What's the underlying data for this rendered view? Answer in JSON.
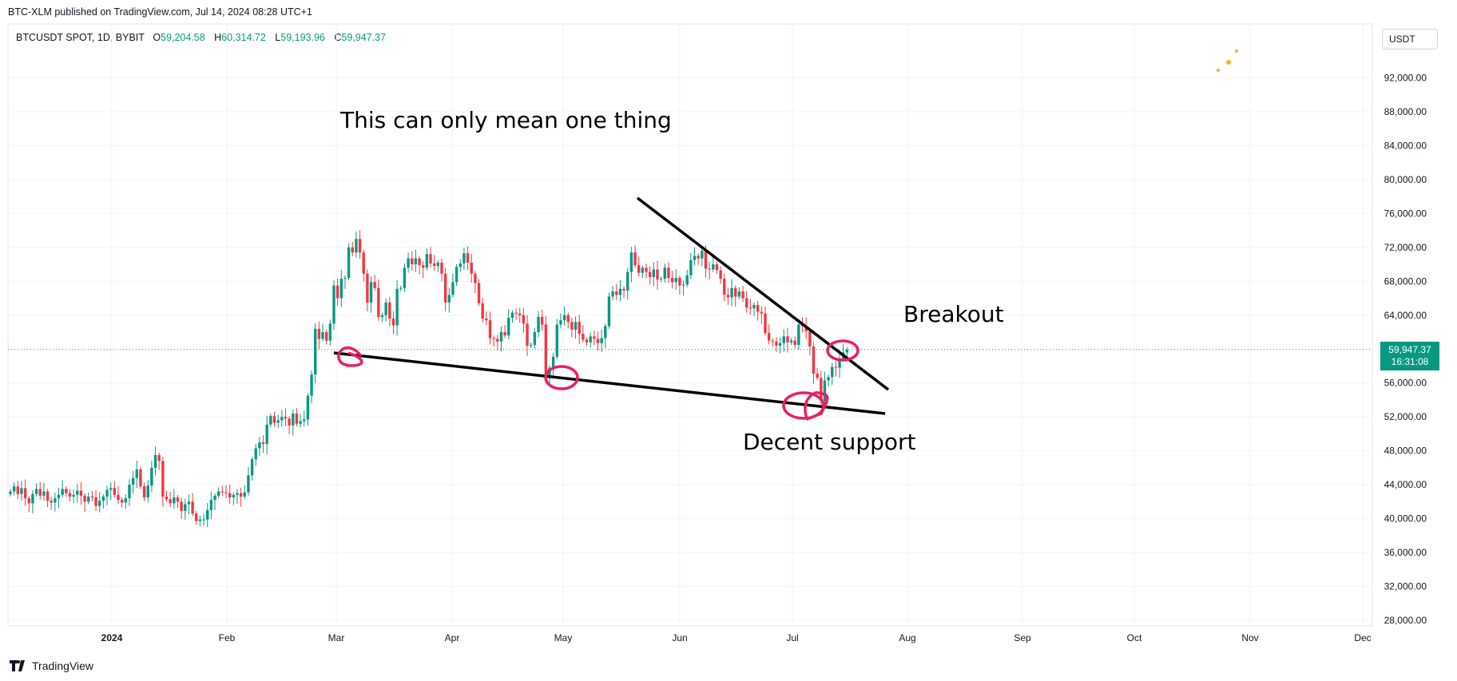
{
  "header": {
    "published": "BTC-XLM published on TradingView.com, Jul 14, 2024 08:28 UTC+1"
  },
  "symbol": {
    "name": "BTCUSDT SPOT, 1D, BYBIT",
    "o_label": "O",
    "o": "59,204.58",
    "h_label": "H",
    "h": "60,314.72",
    "l_label": "L",
    "l": "59,193.96",
    "c_label": "C",
    "c": "59,947.37"
  },
  "currency_button": "USDT",
  "price_tag": {
    "price": "59,947.37",
    "countdown": "16:31:08"
  },
  "annotations": {
    "headline": "This can only mean one thing",
    "breakout": "Breakout",
    "support": "Decent support"
  },
  "footer": {
    "brand": "TradingView"
  },
  "colors": {
    "up": "#089981",
    "down": "#f23645",
    "annotation_circle": "#e91e63"
  },
  "chart_data": {
    "type": "candlestick",
    "y_axis_ticks": [
      "92,000.00",
      "88,000.00",
      "84,000.00",
      "80,000.00",
      "76,000.00",
      "72,000.00",
      "68,000.00",
      "64,000.00",
      "56,000.00",
      "52,000.00",
      "48,000.00",
      "44,000.00",
      "40,000.00",
      "36,000.00",
      "32,000.00",
      "28,000.00"
    ],
    "x_axis_ticks": [
      "2024",
      "Feb",
      "Mar",
      "Apr",
      "May",
      "Jun",
      "Jul",
      "Aug",
      "Sep",
      "Oct",
      "Nov",
      "Dec"
    ],
    "ylim": [
      25000,
      96000
    ],
    "last_price": 59947.37,
    "closes": [
      43200,
      43800,
      42900,
      43600,
      42400,
      41800,
      42900,
      43500,
      42700,
      43200,
      42100,
      41900,
      42400,
      42800,
      43500,
      43000,
      42600,
      42800,
      43300,
      42700,
      42000,
      42600,
      42500,
      41500,
      42100,
      42600,
      43400,
      43600,
      42800,
      42200,
      41900,
      42400,
      44000,
      44800,
      45800,
      43800,
      42500,
      43900,
      46000,
      47500,
      46800,
      42600,
      42300,
      41800,
      42500,
      42000,
      40900,
      41700,
      42000,
      40600,
      39700,
      39900,
      39900,
      41000,
      42200,
      42700,
      43200,
      43100,
      43000,
      42500,
      42800,
      43000,
      42600,
      43100,
      45100,
      47000,
      48300,
      49000,
      48800,
      51100,
      52100,
      51300,
      51600,
      52000,
      51800,
      51000,
      52400,
      51200,
      51500,
      51700,
      54500,
      57000,
      62400,
      61200,
      62000,
      61000,
      63000,
      67500,
      66000,
      68300,
      68400,
      72000,
      71400,
      73000,
      71400,
      68900,
      65500,
      67900,
      67200,
      63800,
      64000,
      65500,
      63600,
      62800,
      67100,
      67200,
      69600,
      70700,
      70000,
      70700,
      69900,
      69600,
      71200,
      70100,
      69800,
      70200,
      68900,
      65500,
      66400,
      67900,
      69700,
      70100,
      71300,
      70200,
      68900,
      67800,
      65400,
      63600,
      63400,
      61300,
      61200,
      60900,
      62000,
      61600,
      63700,
      64300,
      64200,
      64000,
      63000,
      60400,
      60500,
      62000,
      63800,
      62900,
      56900,
      57800,
      59100,
      62900,
      63400,
      64000,
      63200,
      62300,
      63200,
      61800,
      61100,
      60800,
      61500,
      61200,
      60700,
      61300,
      62700,
      66200,
      66800,
      66400,
      67100,
      66900,
      69100,
      71400,
      69900,
      69000,
      69600,
      69100,
      68500,
      69400,
      68200,
      68300,
      69600,
      68400,
      67900,
      68400,
      67500,
      67600,
      68700,
      70500,
      71000,
      70700,
      71600,
      69500,
      69400,
      70000,
      69300,
      68300,
      66400,
      66100,
      67200,
      66200,
      66800,
      66000,
      64900,
      64800,
      65200,
      64400,
      64200,
      61900,
      61000,
      60900,
      60400,
      60700,
      61500,
      60800,
      61000,
      60500,
      62900,
      62700,
      62100,
      60300,
      57100,
      56600,
      53900,
      56300,
      56700,
      57900,
      57800,
      58900,
      59600,
      59947
    ]
  }
}
